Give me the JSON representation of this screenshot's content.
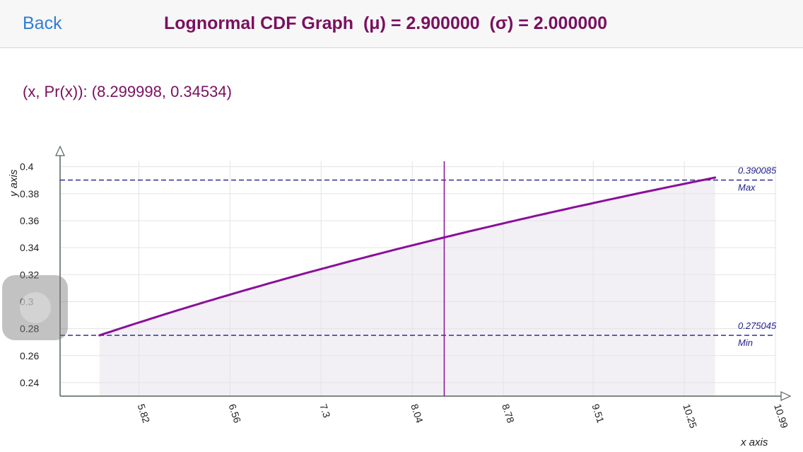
{
  "nav": {
    "back_label": "Back",
    "title": "Lognormal CDF Graph  (μ) = 2.900000  (σ) = 2.000000"
  },
  "readout": "(x, Pr(x)): (8.299998, 0.34534)",
  "colors": {
    "title": "#7a1060",
    "back": "#2f7ed8",
    "curve": "#8a0f9a",
    "ref_line": "#1e1e8c",
    "fill": "#f2f0f5",
    "axis": "#55655a",
    "grid": "#e3e3e3"
  },
  "chart_data": {
    "type": "line",
    "distribution": "lognormal_cdf",
    "mu": 2.9,
    "sigma": 2.0,
    "x_range": [
      5.5,
      10.5
    ],
    "xlim": [
      5.18,
      10.99
    ],
    "ylim": [
      0.23,
      0.404
    ],
    "x_ticks": [
      "5.82",
      "6.56",
      "7.3",
      "8.04",
      "8.78",
      "9.51",
      "10.25",
      "10.99"
    ],
    "y_ticks": [
      "0.4",
      "0.38",
      "0.36",
      "0.34",
      "0.32",
      "0.3",
      "0.28",
      "0.26",
      "0.24"
    ],
    "xlabel": "x axis",
    "ylabel": "y axis",
    "grid": true,
    "cursor": {
      "x": 8.299998,
      "y": 0.34534
    },
    "max": {
      "value": 0.390085,
      "value_label": "0.390085",
      "label": "Max"
    },
    "min": {
      "value": 0.275045,
      "value_label": "0.275045",
      "label": "Min"
    }
  }
}
